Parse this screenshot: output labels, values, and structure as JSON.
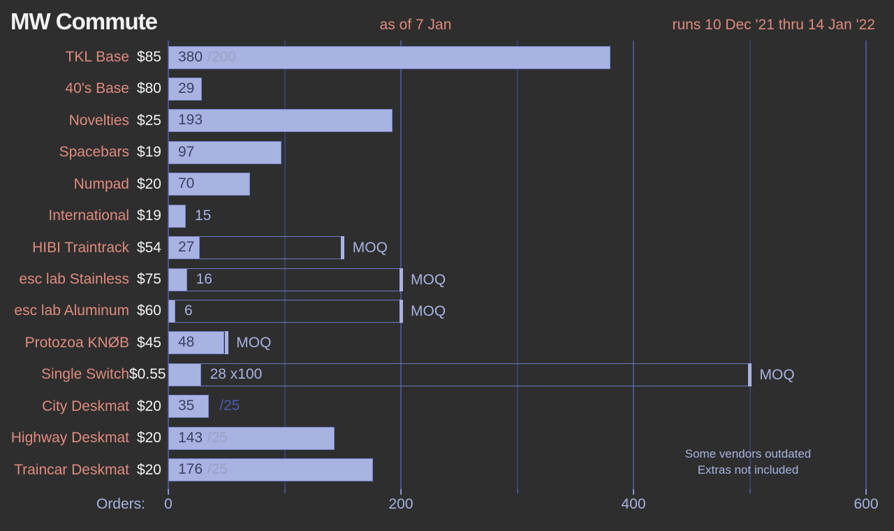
{
  "header": {
    "title": "MW Commute",
    "as_of": "as of 7 Jan",
    "runs": "runs 10 Dec '21 thru 14 Jan '22"
  },
  "axis": {
    "label": "Orders:",
    "tick_labels": [
      0,
      200,
      400,
      600
    ],
    "minor_step": 100,
    "max": 600
  },
  "notes": [
    "Some vendors outdated",
    "Extras not included"
  ],
  "moq_text": "MOQ",
  "colors": {
    "background": "#2e2e2e",
    "bar_fill": "#a9b3e2",
    "bar_border": "#727ec6",
    "value_on_bar": "#3a4063",
    "value_off_bar": "#a9b3e2",
    "suffix_on_bar": "#989fc4",
    "suffix_off_bar": "#4d5cae",
    "label_salmon": "#e08b7e",
    "price_white": "#f2f2f2",
    "gridline_minor": "#3a416e",
    "gridline_major": "#495492"
  },
  "chart_data": {
    "type": "bar",
    "orientation": "horizontal",
    "title": "MW Commute",
    "xlabel": "Orders:",
    "xlim": [
      0,
      600
    ],
    "grid": "vertical, every 100, labels every 200",
    "rows": [
      {
        "name": "TKL Base",
        "price": "$85",
        "value": 380,
        "suffix": "/200"
      },
      {
        "name": "40's Base",
        "price": "$80",
        "value": 29
      },
      {
        "name": "Novelties",
        "price": "$25",
        "value": 193
      },
      {
        "name": "Spacebars",
        "price": "$19",
        "value": 97
      },
      {
        "name": "Numpad",
        "price": "$20",
        "value": 70
      },
      {
        "name": "International",
        "price": "$19",
        "value": 15,
        "value_outside": true
      },
      {
        "name": "HIBI Traintrack",
        "price": "$54",
        "value": 27,
        "moq": 150
      },
      {
        "name": "esc lab Stainless",
        "price": "$75",
        "value": 16,
        "moq": 200,
        "value_outside": true
      },
      {
        "name": "esc lab Aluminum",
        "price": "$60",
        "value": 6,
        "moq": 200,
        "value_outside": true
      },
      {
        "name": "Protozoa KNØB",
        "price": "$45",
        "value": 48,
        "moq": 50
      },
      {
        "name": "Single Switch",
        "price": "$0.55",
        "value": 28,
        "value_label": "28 x100",
        "moq": 500,
        "value_outside": true
      },
      {
        "name": "City Deskmat",
        "price": "$20",
        "value": 35,
        "suffix": "/25",
        "suffix_outside": true
      },
      {
        "name": "Highway Deskmat",
        "price": "$20",
        "value": 143,
        "suffix": "/25"
      },
      {
        "name": "Traincar Deskmat",
        "price": "$20",
        "value": 176,
        "suffix": "/25"
      }
    ]
  }
}
